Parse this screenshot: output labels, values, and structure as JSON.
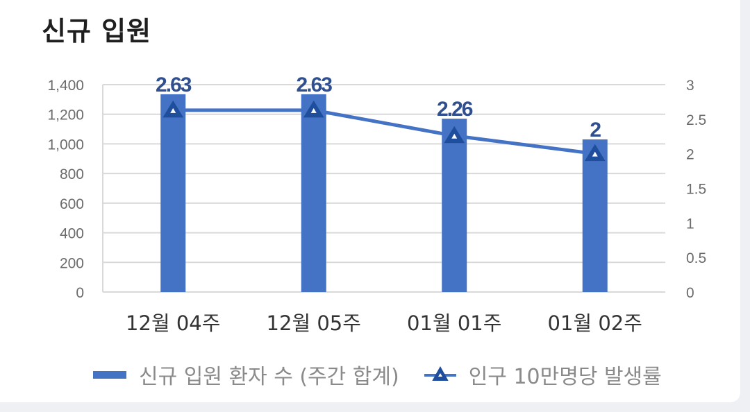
{
  "title": "신규 입원",
  "chart_data": {
    "type": "bar+line",
    "categories": [
      "12월 04주",
      "12월 05주",
      "01월 01주",
      "01월 02주"
    ],
    "bar_series": {
      "name": "신규 입원 환자 수 (주간 합계)",
      "values": [
        1335,
        1335,
        1170,
        1030
      ],
      "axis": "left"
    },
    "line_series": {
      "name": "인구 10만명당 발생률",
      "values": [
        2.63,
        2.63,
        2.26,
        2
      ],
      "axis": "right",
      "labels": [
        "2.63",
        "2.63",
        "2.26",
        "2"
      ]
    },
    "y_left": {
      "ylim": [
        0,
        1400
      ],
      "ticks": [
        "0",
        "200",
        "400",
        "600",
        "800",
        "1,000",
        "1,200",
        "1,400"
      ]
    },
    "y_right": {
      "ylim": [
        0,
        3
      ],
      "ticks": [
        "0",
        "0.5",
        "1",
        "1.5",
        "2",
        "2.5",
        "3"
      ]
    },
    "grid": true,
    "legend_position": "bottom",
    "colors": {
      "bar": "#4472c4",
      "line": "#4472c4",
      "label": "#2f4f8f"
    }
  }
}
